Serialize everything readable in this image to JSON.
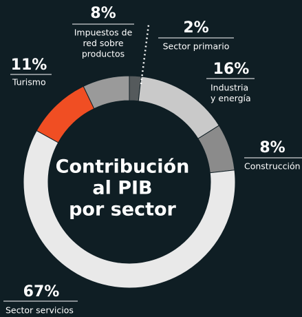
{
  "chart_data": {
    "type": "donut",
    "title": [
      "Contribución",
      "al PIB",
      "por sector"
    ],
    "categories": [
      [
        "Sector primario"
      ],
      [
        "Industria",
        "y energía"
      ],
      [
        "Construcción"
      ],
      [
        "Sector servicios"
      ],
      [
        "Turismo"
      ],
      [
        "Impuestos de",
        "red sobre",
        "productos"
      ]
    ],
    "values": [
      2,
      16,
      8,
      67,
      11,
      8
    ],
    "value_labels": [
      "2%",
      "16%",
      "8%",
      "67%",
      "11%",
      "8%"
    ],
    "colors": [
      "#555a5c",
      "#c9c9c9",
      "#8b8b8b",
      "#e9e9e9",
      "#f04e23",
      "#9a9a9a"
    ]
  }
}
